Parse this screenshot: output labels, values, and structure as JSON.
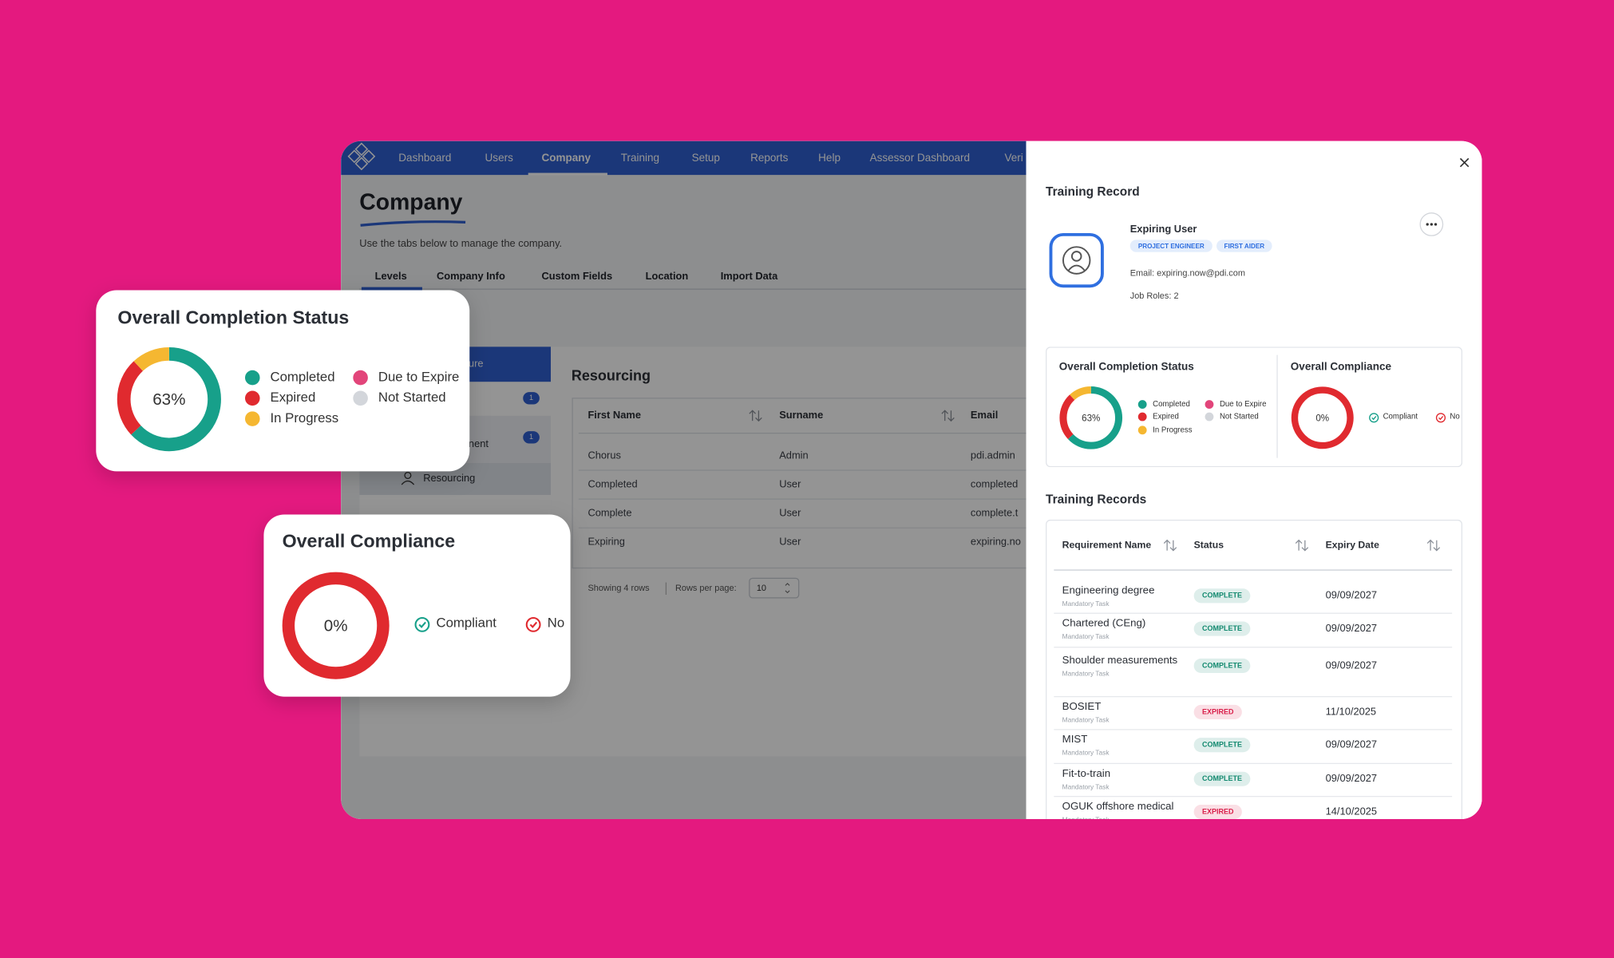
{
  "nav": [
    "Dashboard",
    "Users",
    "Company",
    "Training",
    "Setup",
    "Reports",
    "Help",
    "Assessor Dashboard",
    "Veri"
  ],
  "page": {
    "title": "Company",
    "subtitle": "Use the tabs below to manage the company.",
    "tabs": [
      "Levels",
      "Company Info",
      "Custom Fields",
      "Location",
      "Import Data"
    ]
  },
  "sidebar": {
    "items": [
      "ure",
      "nent",
      "Resourcing"
    ],
    "badges": [
      "1",
      "1"
    ]
  },
  "resourcing": {
    "title": "Resourcing",
    "columns": [
      "First Name",
      "Surname",
      "Email"
    ],
    "rows": [
      [
        "Chorus",
        "Admin",
        "pdi.admin"
      ],
      [
        "Completed",
        "User",
        "completed"
      ],
      [
        "Complete",
        "User",
        "complete.t"
      ],
      [
        "Expiring",
        "User",
        "expiring.no"
      ]
    ],
    "showing": "Showing 4 rows",
    "rows_per_page": "Rows per page:",
    "page_size": "10"
  },
  "chart_data": [
    {
      "type": "donut",
      "title": "Overall Completion Status",
      "center_label": "63%",
      "categories": [
        "Completed",
        "Expired",
        "In Progress",
        "Due to Expire",
        "Not Started"
      ],
      "values": [
        63,
        25,
        12,
        0,
        0
      ],
      "colors": [
        "#17a08a",
        "#e02a2f",
        "#f5b731",
        "#e2457a",
        "#d3d6db"
      ]
    },
    {
      "type": "donut",
      "title": "Overall Compliance",
      "center_label": "0%",
      "categories": [
        "Compliant",
        "No"
      ],
      "values": [
        0,
        100
      ],
      "colors": [
        "#17a08a",
        "#e02a2f"
      ]
    }
  ],
  "training_record": {
    "title": "Training Record",
    "user": "Expiring User",
    "tags": [
      "PROJECT ENGINEER",
      "FIRST AIDER"
    ],
    "email": "Email: expiring.now@pdi.com",
    "job_roles": "Job Roles: 2",
    "records_title": "Training Records",
    "columns": [
      "Requirement Name",
      "Status",
      "Expiry Date"
    ],
    "rows": [
      {
        "name": "Engineering degree",
        "type": "Mandatory Task",
        "status": "COMPLETE",
        "color": "#148a70",
        "expiry": "09/09/2027"
      },
      {
        "name": "Chartered (CEng)",
        "type": "Mandatory Task",
        "status": "COMPLETE",
        "color": "#148a70",
        "expiry": "09/09/2027"
      },
      {
        "name": "Shoulder measurements",
        "type": "Mandatory Task",
        "status": "COMPLETE",
        "color": "#148a70",
        "expiry": "09/09/2027"
      },
      {
        "name": "BOSIET",
        "type": "Mandatory Task",
        "status": "EXPIRED",
        "color": "#d91f4a",
        "expiry": "11/10/2025"
      },
      {
        "name": "MIST",
        "type": "Mandatory Task",
        "status": "COMPLETE",
        "color": "#148a70",
        "expiry": "09/09/2027"
      },
      {
        "name": "Fit-to-train",
        "type": "Mandatory Task",
        "status": "COMPLETE",
        "color": "#148a70",
        "expiry": "09/09/2027"
      },
      {
        "name": "OGUK offshore medical",
        "type": "Mandatory Task",
        "status": "EXPIRED",
        "color": "#d91f4a",
        "expiry": "14/10/2025"
      }
    ]
  }
}
